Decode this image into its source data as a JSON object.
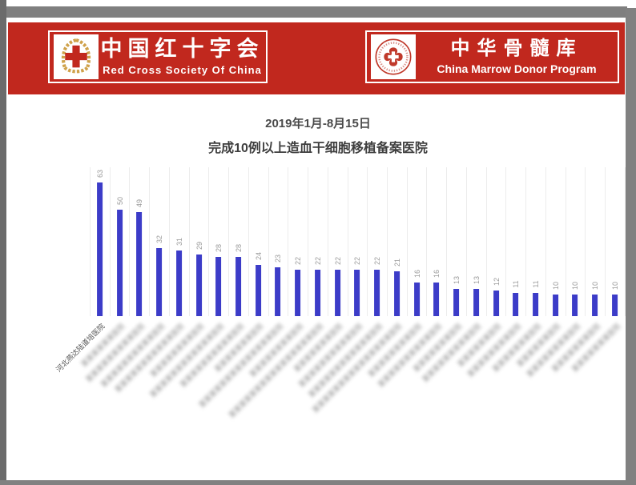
{
  "frame": {
    "background": "#ffffff",
    "frame_gray": "#818181",
    "left_strip_gray": "#6b6b6b"
  },
  "header": {
    "band_color": "#c1281e",
    "left_banner": {
      "logo_icon": "red-cross-wreath-emblem",
      "title_cn": "中国红十字会",
      "title_en": "Red Cross Society Of China"
    },
    "right_banner": {
      "logo_icon": "china-marrow-donor-emblem",
      "title_cn": "中华骨髓库",
      "title_en": "China Marrow Donor Program"
    }
  },
  "chart_data": {
    "type": "bar",
    "title_line1": "2019年1月-8月15日",
    "title_line2": "完成10例以上造血干细胞移植备案医院",
    "values": [
      63,
      50,
      49,
      32,
      31,
      29,
      28,
      28,
      24,
      23,
      22,
      22,
      22,
      22,
      22,
      21,
      16,
      16,
      13,
      13,
      12,
      11,
      11,
      10,
      10,
      10,
      10
    ],
    "categories": [
      {
        "label": "河北燕达陆道培医院",
        "blurred": false
      },
      {
        "label": "某某某某某某医院",
        "blurred": true
      },
      {
        "label": "某某某某某某某某某医院",
        "blurred": true
      },
      {
        "label": "某某某某某某某某某某医院",
        "blurred": true
      },
      {
        "label": "某某某某某某某某某某某医院",
        "blurred": true
      },
      {
        "label": "某某某某某某某某医院",
        "blurred": true
      },
      {
        "label": "某某某某某某某某某某某某医院",
        "blurred": true
      },
      {
        "label": "某某某某某某某某某某医院",
        "blurred": true
      },
      {
        "label": "某某某某某某某医院",
        "blurred": true
      },
      {
        "label": "某某某某某某某某某某某某某某医院",
        "blurred": true
      },
      {
        "label": "某某某某某某某某医院",
        "blurred": true
      },
      {
        "label": "某某某某某某某某某某某某某某某某医院",
        "blurred": true
      },
      {
        "label": "某某某某某某某医院",
        "blurred": true
      },
      {
        "label": "某某某某某某某某某某医院",
        "blurred": true
      },
      {
        "label": "某某某某某某某某某某某某医院",
        "blurred": true
      },
      {
        "label": "某某某某某某某某某某某某某某某医院",
        "blurred": true
      },
      {
        "label": "某某某某某某某某医院",
        "blurred": true
      },
      {
        "label": "某某某某某某某某某某医院",
        "blurred": true
      },
      {
        "label": "某某某某某某某医院",
        "blurred": true
      },
      {
        "label": "某某某某某某某某某医院",
        "blurred": true
      },
      {
        "label": "某某某某某某医院",
        "blurred": true
      },
      {
        "label": "某某某某某某某某医院",
        "blurred": true
      },
      {
        "label": "某某某某某某某医院",
        "blurred": true
      },
      {
        "label": "某某某某某某医院",
        "blurred": true
      },
      {
        "label": "某某某某某某某某医院",
        "blurred": true
      },
      {
        "label": "某某某某某某某医院",
        "blurred": true
      },
      {
        "label": "某某某某某某某医院",
        "blurred": true
      }
    ],
    "bar_color": "#3c3cc8",
    "value_label_color": "#9a9a9a",
    "gridline_color": "#ececec",
    "ylim": [
      0,
      70
    ],
    "grid": "vertical",
    "x_label_rotation_deg": 45,
    "value_label_rotation_deg": 90
  }
}
